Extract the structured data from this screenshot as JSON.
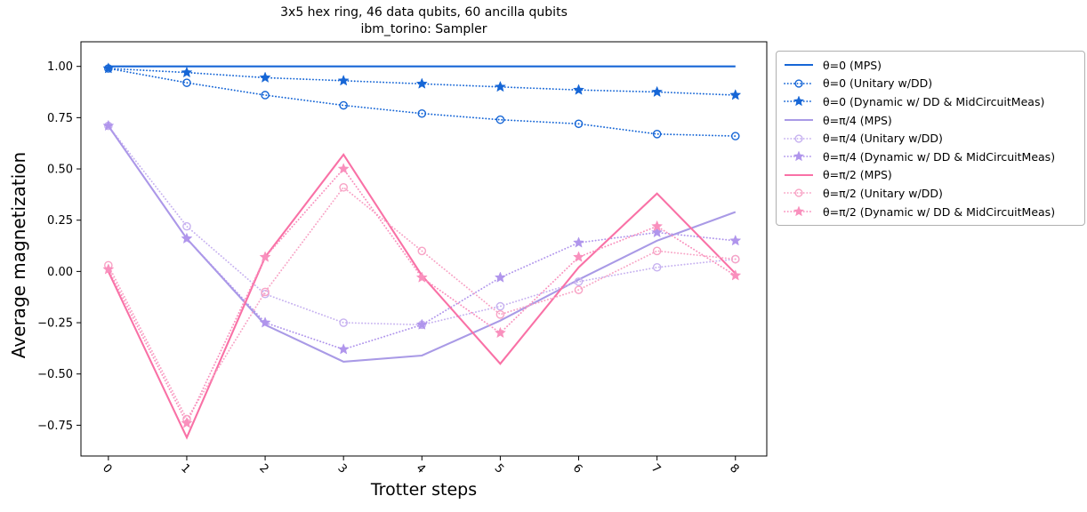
{
  "figure": {
    "title_line1": "3x5 hex ring, 46 data qubits, 60 ancilla qubits",
    "title_line2": "ibm_torino: Sampler",
    "xlabel": "Trotter steps",
    "ylabel": "Average magnetization",
    "background_color": "#ffffff",
    "axis_color": "#000000",
    "legend_border_color": "#b0b0b0"
  },
  "chart_data": {
    "type": "line",
    "title": "3x5 hex ring, 46 data qubits, 60 ancilla qubits\nibm_torino: Sampler",
    "xlabel": "Trotter steps",
    "ylabel": "Average magnetization",
    "x": [
      0,
      1,
      2,
      3,
      4,
      5,
      6,
      7,
      8
    ],
    "xtick_labels": [
      "0",
      "1",
      "2",
      "3",
      "4",
      "5",
      "6",
      "7",
      "8"
    ],
    "yticks": [
      1.0,
      0.75,
      0.5,
      0.25,
      0.0,
      -0.25,
      -0.5,
      -0.75
    ],
    "ytick_labels": [
      "1.00",
      "0.75",
      "0.50",
      "0.25",
      "0.00",
      "−0.25",
      "−0.50",
      "−0.75"
    ],
    "xlim": [
      -0.35,
      8.4
    ],
    "ylim": [
      -0.9,
      1.12
    ],
    "grid": false,
    "legend_position": "outside-right",
    "series": [
      {
        "name": "θ=0 (MPS)",
        "color": "#1666d6",
        "line": "solid",
        "marker": "none",
        "values": [
          1.0,
          1.0,
          1.0,
          1.0,
          1.0,
          1.0,
          1.0,
          1.0,
          1.0
        ]
      },
      {
        "name": "θ=0 (Unitary w/DD)",
        "color": "#1666d6",
        "line": "dotted",
        "marker": "circle",
        "values": [
          0.99,
          0.92,
          0.86,
          0.81,
          0.77,
          0.74,
          0.72,
          0.67,
          0.66
        ]
      },
      {
        "name": "θ=0 (Dynamic w/ DD & MidCircuitMeas)",
        "color": "#1666d6",
        "line": "dotted",
        "marker": "star",
        "values": [
          0.99,
          0.97,
          0.945,
          0.93,
          0.915,
          0.9,
          0.885,
          0.875,
          0.86
        ]
      },
      {
        "name": "θ=π/4 (MPS)",
        "color": "#a99ae6",
        "line": "solid",
        "marker": "none",
        "values": [
          0.71,
          0.16,
          -0.26,
          -0.44,
          -0.41,
          -0.24,
          -0.04,
          0.15,
          0.29
        ]
      },
      {
        "name": "θ=π/4 (Unitary w/DD)",
        "color": "#c7b2f0",
        "line": "dotted",
        "marker": "circle",
        "values": [
          0.71,
          0.22,
          -0.11,
          -0.25,
          -0.26,
          -0.17,
          -0.05,
          0.02,
          0.06
        ]
      },
      {
        "name": "θ=π/4 (Dynamic w/ DD & MidCircuitMeas)",
        "color": "#b095ec",
        "line": "dotted",
        "marker": "star",
        "values": [
          0.71,
          0.16,
          -0.25,
          -0.38,
          -0.26,
          -0.03,
          0.14,
          0.19,
          0.15
        ]
      },
      {
        "name": "θ=π/2 (MPS)",
        "color": "#f971a6",
        "line": "solid",
        "marker": "none",
        "values": [
          0.0,
          -0.81,
          0.07,
          0.57,
          -0.02,
          -0.45,
          0.02,
          0.38,
          -0.01
        ]
      },
      {
        "name": "θ=π/2 (Unitary w/DD)",
        "color": "#f8a3c5",
        "line": "dotted",
        "marker": "circle",
        "values": [
          0.03,
          -0.72,
          -0.1,
          0.41,
          0.1,
          -0.21,
          -0.09,
          0.1,
          0.06
        ]
      },
      {
        "name": "θ=π/2 (Dynamic w/ DD & MidCircuitMeas)",
        "color": "#f990bd",
        "line": "dotted",
        "marker": "star",
        "values": [
          0.01,
          -0.74,
          0.07,
          0.5,
          -0.03,
          -0.3,
          0.07,
          0.22,
          -0.02
        ]
      }
    ]
  }
}
